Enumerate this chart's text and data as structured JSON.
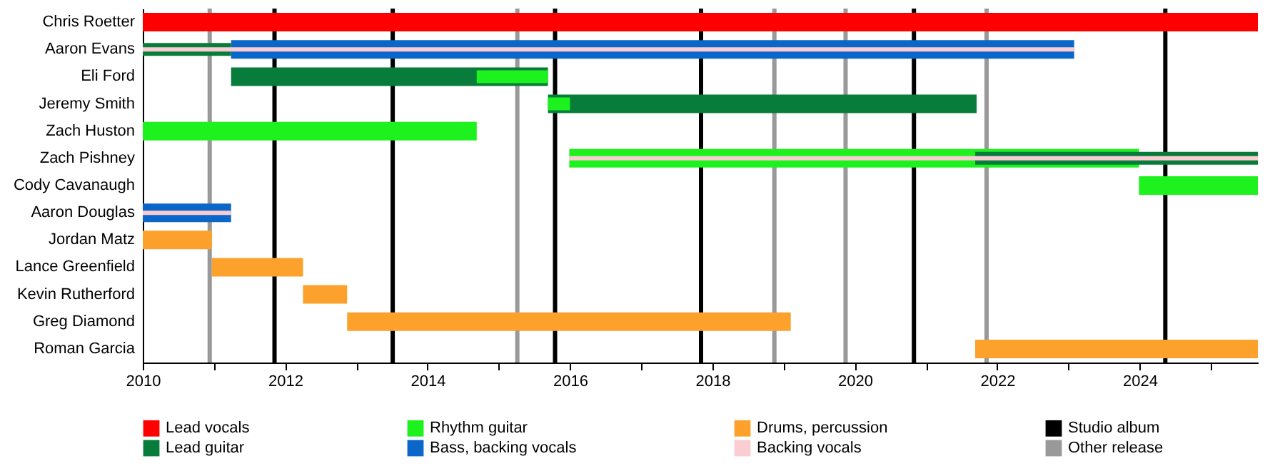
{
  "chart_data": {
    "type": "bar",
    "orientation": "horizontal",
    "legend": "bottom",
    "grid": false,
    "categories": [
      "Chris Roetter",
      "Aaron Evans",
      "Eli Ford",
      "Jeremy Smith",
      "Zach Huston",
      "Zach Pishney",
      "Cody Cavanaugh",
      "Aaron Douglas",
      "Jordan Matz",
      "Lance Greenfield",
      "Kevin Rutherford",
      "Greg Diamond",
      "Roman Garcia"
    ],
    "series": [
      {
        "name": "Lead vocals",
        "color": "#ff0000",
        "base": [
          2010,
          null,
          null,
          null,
          null,
          null,
          null,
          null,
          null,
          null,
          null,
          null,
          null
        ],
        "values": [
          15.66,
          null,
          null,
          null,
          null,
          null,
          null,
          null,
          null,
          null,
          null,
          null,
          null
        ]
      },
      {
        "name": "Lead guitar",
        "color": "#087c3a",
        "base": [
          null,
          2010,
          2011.24,
          2015.69,
          null,
          2021.69,
          null,
          null,
          null,
          null,
          null,
          null,
          null
        ],
        "values": [
          null,
          1.24,
          4.45,
          6.02,
          null,
          3.97,
          null,
          null,
          null,
          null,
          null,
          null,
          null
        ]
      },
      {
        "name": "Rhythm guitar",
        "color": "#1ef21e",
        "base": [
          null,
          null,
          2014.69,
          2015.69,
          2010,
          2015.99,
          2023.99,
          null,
          null,
          null,
          null,
          null,
          null
        ],
        "values": [
          null,
          null,
          1.0,
          0.31,
          4.69,
          8.0,
          1.67,
          null,
          null,
          null,
          null,
          null,
          null
        ]
      },
      {
        "name": "Bass, backing vocals",
        "color": "#0a66c8",
        "base": [
          null,
          2011.24,
          null,
          null,
          null,
          null,
          null,
          2010,
          null,
          null,
          null,
          null,
          null
        ],
        "values": [
          null,
          11.84,
          null,
          null,
          null,
          null,
          null,
          1.24,
          null,
          null,
          null,
          null,
          null
        ]
      },
      {
        "name": "Drums, percussion",
        "color": "#fca22c",
        "base": [
          null,
          null,
          null,
          null,
          null,
          null,
          null,
          null,
          2010,
          2010.97,
          2012.25,
          2012.87,
          2021.69
        ],
        "values": [
          null,
          null,
          null,
          null,
          null,
          null,
          null,
          null,
          0.97,
          1.28,
          0.62,
          6.23,
          3.97
        ]
      },
      {
        "name": "Backing vocals",
        "color": "#f9cdd2",
        "base": [
          null,
          2010,
          null,
          null,
          null,
          2015.99,
          null,
          2010,
          null,
          null,
          null,
          null,
          null
        ],
        "values": [
          null,
          13.08,
          null,
          null,
          null,
          9.67,
          null,
          1.24,
          null,
          null,
          null,
          null,
          null
        ]
      }
    ],
    "ref_lines": [
      {
        "axis": "x",
        "value": 2011.85,
        "label": "Studio album",
        "color": "#000000"
      },
      {
        "axis": "x",
        "value": 2013.51,
        "color": "#000000"
      },
      {
        "axis": "x",
        "value": 2015.79,
        "color": "#000000"
      },
      {
        "axis": "x",
        "value": 2017.84,
        "color": "#000000"
      },
      {
        "axis": "x",
        "value": 2020.83,
        "color": "#000000"
      },
      {
        "axis": "x",
        "value": 2024.36,
        "color": "#000000"
      },
      {
        "axis": "x",
        "value": 2010.94,
        "label": "Other release",
        "color": "#999999"
      },
      {
        "axis": "x",
        "value": 2015.26,
        "color": "#999999"
      },
      {
        "axis": "x",
        "value": 2018.87,
        "color": "#999999"
      },
      {
        "axis": "x",
        "value": 2019.87,
        "color": "#999999"
      },
      {
        "axis": "x",
        "value": 2021.85,
        "color": "#999999"
      }
    ],
    "xlim": [
      2010,
      2025.66
    ],
    "xticks": [
      2010,
      {
        "value": 2011,
        "label": null
      },
      2012,
      {
        "value": 2013,
        "label": null
      },
      2014,
      {
        "value": 2015,
        "label": null
      },
      2016,
      {
        "value": 2017,
        "label": null
      },
      2018,
      {
        "value": 2019,
        "label": null
      },
      2020,
      {
        "value": 2021,
        "label": null
      },
      2022,
      {
        "value": 2023,
        "label": null
      },
      2024,
      {
        "value": 2025,
        "label": null
      }
    ]
  }
}
